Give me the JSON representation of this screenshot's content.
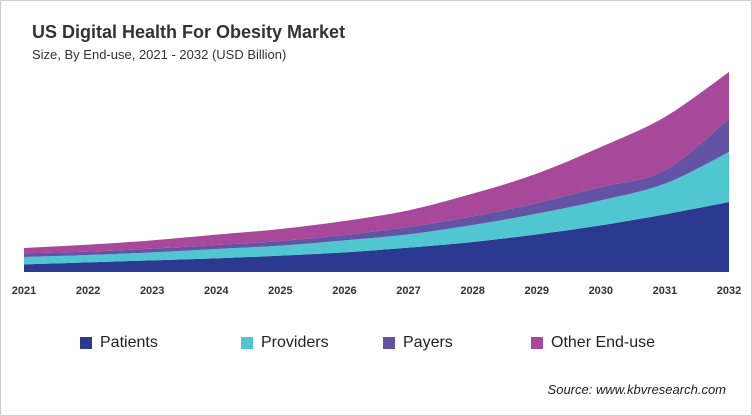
{
  "chart_data": {
    "type": "area",
    "stacked": true,
    "title": "US Digital Health For Obesity Market",
    "subtitle": "Size, By End-use, 2021 - 2032 (USD Billion)",
    "xlabel": "",
    "ylabel": "",
    "x": [
      "2021",
      "2022",
      "2023",
      "2024",
      "2025",
      "2026",
      "2027",
      "2028",
      "2029",
      "2030",
      "2031",
      "2032"
    ],
    "ylim": [
      0,
      6
    ],
    "grid": false,
    "y_axis_visible": false,
    "legend_position": "bottom",
    "series": [
      {
        "name": "Patients",
        "color": "#2b3990",
        "values": [
          0.23,
          0.29,
          0.35,
          0.41,
          0.49,
          0.59,
          0.73,
          0.9,
          1.13,
          1.4,
          1.73,
          2.1
        ]
      },
      {
        "name": "Providers",
        "color": "#4fc6d0",
        "values": [
          0.22,
          0.22,
          0.24,
          0.28,
          0.3,
          0.36,
          0.4,
          0.51,
          0.62,
          0.75,
          0.92,
          1.5
        ]
      },
      {
        "name": "Payers",
        "color": "#6353a5",
        "values": [
          0.11,
          0.1,
          0.11,
          0.12,
          0.14,
          0.16,
          0.22,
          0.26,
          0.32,
          0.4,
          0.4,
          1.0
        ]
      },
      {
        "name": "Other End-use",
        "color": "#a8489a",
        "values": [
          0.16,
          0.21,
          0.25,
          0.31,
          0.36,
          0.42,
          0.5,
          0.68,
          0.88,
          1.2,
          1.6,
          1.4
        ]
      }
    ]
  },
  "source": "Source: www.kbvresearch.com"
}
